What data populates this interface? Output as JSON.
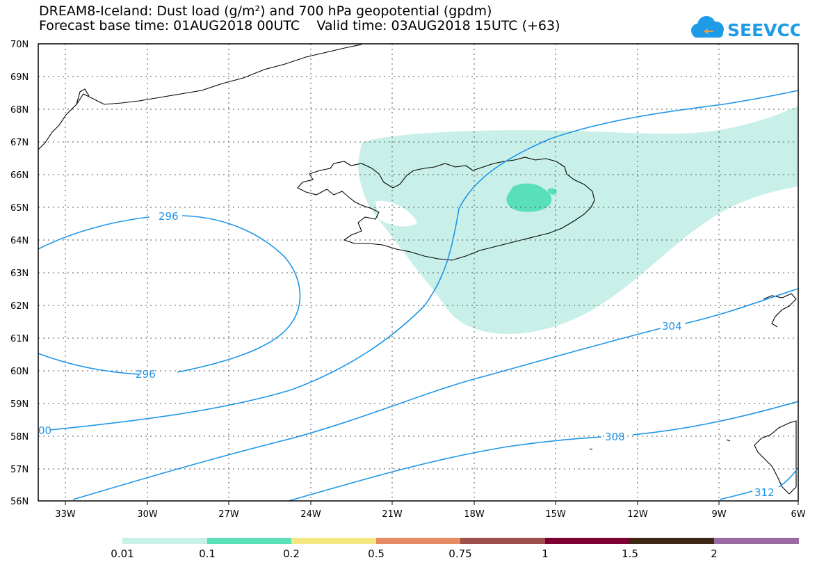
{
  "title": {
    "line1": "DREAM8-Iceland: Dust load (g/m²) and 700 hPa geopotential (gpdm)",
    "line2": "Forecast base time: 01AUG2018 00UTC    Valid time: 03AUG2018 15UTC (+63)"
  },
  "logo": {
    "text": "SEEVCCC",
    "color": "#1e9be6"
  },
  "map": {
    "lat_labels": [
      "70N",
      "69N",
      "68N",
      "67N",
      "66N",
      "65N",
      "64N",
      "63N",
      "62N",
      "61N",
      "60N",
      "59N",
      "58N",
      "57N",
      "56N"
    ],
    "lon_labels": [
      "33W",
      "30W",
      "27W",
      "24W",
      "21W",
      "18W",
      "15W",
      "12W",
      "9W",
      "6W"
    ],
    "contour_color": "#1e96e6",
    "contour_labels": [
      "296",
      "296",
      "00",
      "304",
      "308",
      "312"
    ],
    "dust_colors": {
      "0.01": "#c8f0e8",
      "0.1": "#5ae0b8"
    }
  },
  "colorbar": {
    "colors": [
      "#c8f0e8",
      "#5ae0b8",
      "#f5e682",
      "#e68c64",
      "#a0504b",
      "#7d0032",
      "#3c2814",
      "#9a6aa0"
    ],
    "labels": [
      "0.01",
      "0.1",
      "0.2",
      "0.5",
      "0.75",
      "1",
      "1.5",
      "2"
    ]
  }
}
